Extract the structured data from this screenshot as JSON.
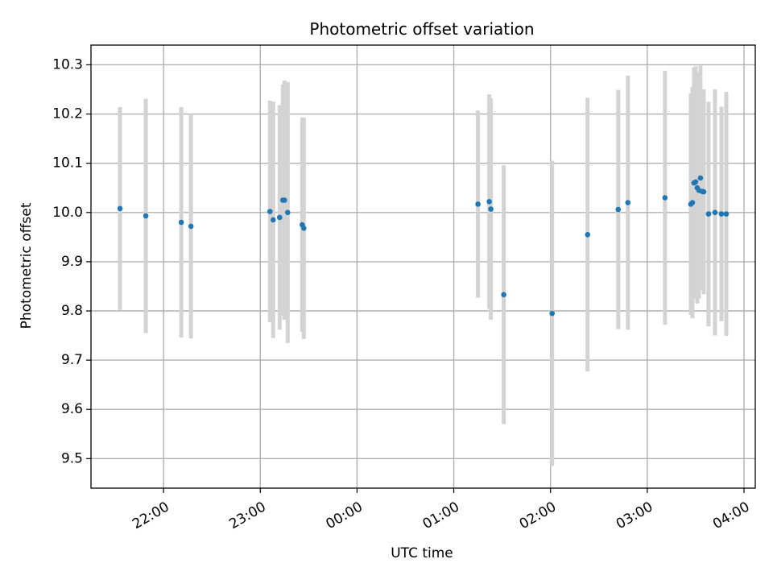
{
  "chart_data": {
    "type": "scatter",
    "title": "Photometric offset variation",
    "xlabel": "UTC time",
    "ylabel": "Photometric offset",
    "x_unit": "UTC time (hours, 21:00 day 1 through 04:00 day 2)",
    "xlim": [
      "21:15",
      "04:07"
    ],
    "ylim": [
      9.44,
      10.34
    ],
    "grid": true,
    "x_ticks": [
      "22:00",
      "23:00",
      "00:00",
      "01:00",
      "02:00",
      "03:00",
      "04:00"
    ],
    "y_ticks": [
      "9.5",
      "9.6",
      "9.7",
      "9.8",
      "9.9",
      "10.0",
      "10.1",
      "10.2",
      "10.3"
    ],
    "series": [
      {
        "marker_color": "#1f77b4",
        "errorbar_color": "#d3d3d3",
        "points": [
          {
            "t": "21:33",
            "y": 10.008,
            "err": 0.206
          },
          {
            "t": "21:49",
            "y": 9.993,
            "err": 0.238
          },
          {
            "t": "22:11",
            "y": 9.98,
            "err": 0.234
          },
          {
            "t": "22:17",
            "y": 9.972,
            "err": 0.228
          },
          {
            "t": "23:06",
            "y": 10.002,
            "err": 0.225
          },
          {
            "t": "23:08",
            "y": 9.985,
            "err": 0.24
          },
          {
            "t": "23:12",
            "y": 9.99,
            "err": 0.228
          },
          {
            "t": "23:14",
            "y": 10.025,
            "err": 0.235
          },
          {
            "t": "23:15",
            "y": 10.025,
            "err": 0.243
          },
          {
            "t": "23:17",
            "y": 10.0,
            "err": 0.265
          },
          {
            "t": "23:26",
            "y": 9.975,
            "err": 0.218
          },
          {
            "t": "23:27",
            "y": 9.968,
            "err": 0.225
          },
          {
            "t": "01:15",
            "y": 10.017,
            "err": 0.19
          },
          {
            "t": "01:22",
            "y": 10.022,
            "err": 0.218
          },
          {
            "t": "01:23",
            "y": 10.007,
            "err": 0.225
          },
          {
            "t": "01:31",
            "y": 9.833,
            "err": 0.263
          },
          {
            "t": "02:01",
            "y": 9.795,
            "err": 0.31
          },
          {
            "t": "02:23",
            "y": 9.955,
            "err": 0.278
          },
          {
            "t": "02:42",
            "y": 10.006,
            "err": 0.243
          },
          {
            "t": "02:48",
            "y": 10.02,
            "err": 0.258
          },
          {
            "t": "03:11",
            "y": 10.03,
            "err": 0.258
          },
          {
            "t": "03:27",
            "y": 10.017,
            "err": 0.225
          },
          {
            "t": "03:28",
            "y": 10.02,
            "err": 0.235
          },
          {
            "t": "03:29",
            "y": 10.06,
            "err": 0.235
          },
          {
            "t": "03:30",
            "y": 10.062,
            "err": 0.235
          },
          {
            "t": "03:31",
            "y": 10.05,
            "err": 0.235
          },
          {
            "t": "03:32",
            "y": 10.045,
            "err": 0.22
          },
          {
            "t": "03:33",
            "y": 10.07,
            "err": 0.228
          },
          {
            "t": "03:34",
            "y": 10.043,
            "err": 0.2
          },
          {
            "t": "03:35",
            "y": 10.042,
            "err": 0.208
          },
          {
            "t": "03:38",
            "y": 9.997,
            "err": 0.228
          },
          {
            "t": "03:42",
            "y": 10.0,
            "err": 0.25
          },
          {
            "t": "03:46",
            "y": 9.997,
            "err": 0.218
          },
          {
            "t": "03:49",
            "y": 9.997,
            "err": 0.248
          }
        ]
      }
    ]
  }
}
